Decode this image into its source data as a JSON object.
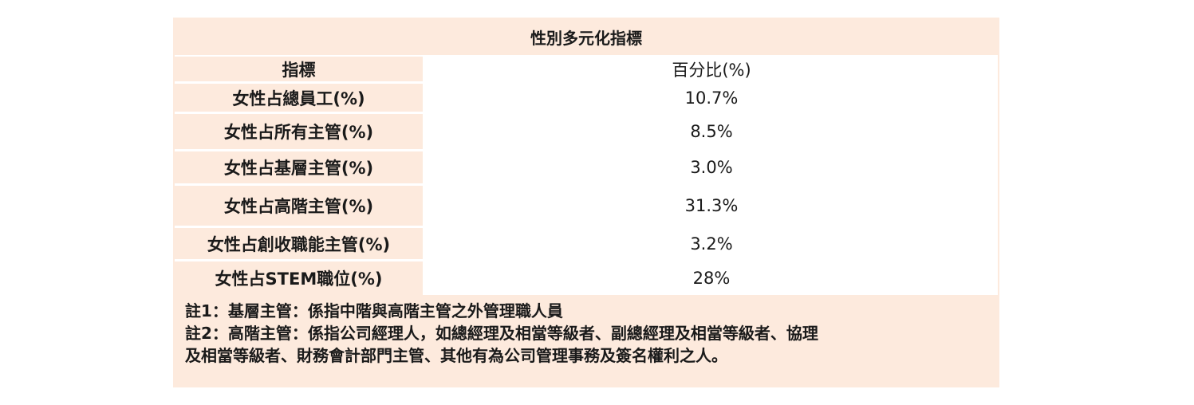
{
  "table": {
    "title": "性別多元化指標",
    "header": {
      "label": "指標",
      "value": "百分比(%)"
    },
    "rows": [
      {
        "label": "女性占總員工(%)",
        "value": "10.7%"
      },
      {
        "label": "女性占所有主管(%)",
        "value": "8.5%"
      },
      {
        "label": "女性占基層主管(%)",
        "value": "3.0%"
      },
      {
        "label": "女性占高階主管(%)",
        "value": "31.3%"
      },
      {
        "label": "女性占創收職能主管(%)",
        "value": "3.2%"
      },
      {
        "label": "女性占STEM職位(%)",
        "value": "28%"
      }
    ],
    "notes": [
      "註1：基層主管：係指中階與高階主管之外管理職人員",
      "註2：高階主管：係指公司經理人，如總經理及相當等級者、副總經理及相當等級者、協理",
      "及相當等級者、財務會計部門主管、其他有為公司管理事務及簽名權利之人。"
    ],
    "colors": {
      "peach": "#fdeadd",
      "white": "#ffffff"
    }
  }
}
